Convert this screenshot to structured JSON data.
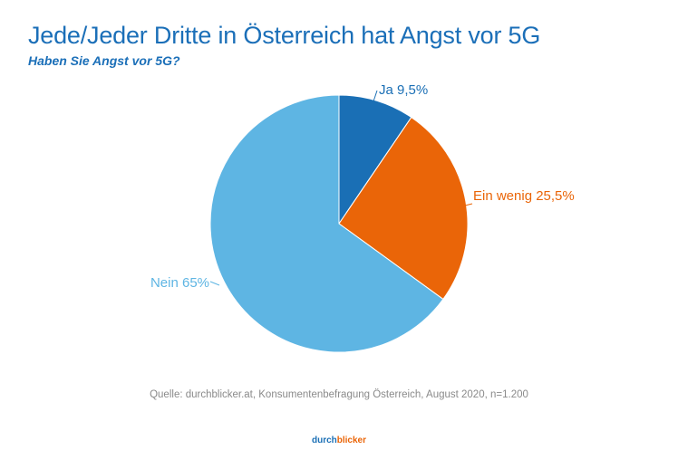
{
  "header": {
    "title": "Jede/Jeder Dritte in Österreich hat Angst vor 5G",
    "subtitle": "Haben Sie Angst vor 5G?"
  },
  "chart_data": {
    "type": "pie",
    "title": "Jede/Jeder Dritte in Österreich hat Angst vor 5G",
    "subtitle": "Haben Sie Angst vor 5G?",
    "start": "top",
    "direction": "clockwise",
    "slices": [
      {
        "label": "Ja",
        "value": 9.5,
        "display": "Ja 9,5%",
        "color": "#1a6fb5"
      },
      {
        "label": "Ein wenig",
        "value": 25.5,
        "display": "Ein wenig 25,5%",
        "color": "#ea6508"
      },
      {
        "label": "Nein",
        "value": 65,
        "display": "Nein 65%",
        "color": "#5eb5e3"
      }
    ]
  },
  "footer": {
    "source": "Quelle: durchblicker.at, Konsumentenbefragung Österreich, August 2020, n=1.200",
    "logo_part1": "durch",
    "logo_part2": "blicker",
    "logo_color1": "#1a6fb5",
    "logo_color2": "#ea6508"
  }
}
